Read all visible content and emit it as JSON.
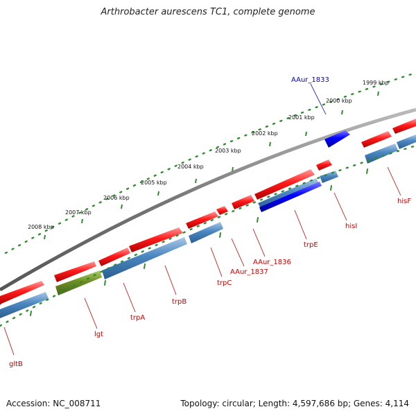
{
  "title": "Arthrobacter aurescens TC1, complete genome",
  "footer": {
    "accession": "Accession: NC_008711",
    "topology": "Topology: circular; Length: 4,597,686 bp; Genes: 4,114"
  },
  "kbp_ticks": [
    "2008 kbp",
    "2007 kbp",
    "2006 kbp",
    "2005 kbp",
    "2004 kbp",
    "2003 kbp",
    "2002 kbp",
    "2001 kbp",
    "2000 kbp",
    "1999 kbp"
  ],
  "genes": [
    {
      "name": "gltB",
      "color": "#cc0000"
    },
    {
      "name": "lgt",
      "color": "#cc0000"
    },
    {
      "name": "trpA",
      "color": "#cc0000"
    },
    {
      "name": "trpB",
      "color": "#cc0000"
    },
    {
      "name": "trpC",
      "color": "#cc0000"
    },
    {
      "name": "AAur_1837",
      "color": "#cc0000"
    },
    {
      "name": "AAur_1836",
      "color": "#cc0000"
    },
    {
      "name": "trpE",
      "color": "#cc0000"
    },
    {
      "name": "hisI",
      "color": "#cc0000"
    },
    {
      "name": "hisF",
      "color": "#cc0000"
    },
    {
      "name": "AAur_1833",
      "color": "#0000cc"
    }
  ],
  "colors": {
    "forward_gene": "#ff1a1a",
    "reverse_gene": "#4a86c0",
    "highlight_reverse": "#0000ee",
    "highlight_forward": "#0000ff",
    "green_gene": "#6b8e23",
    "backbone": "#808080",
    "ticks": "#2e8b2e"
  }
}
